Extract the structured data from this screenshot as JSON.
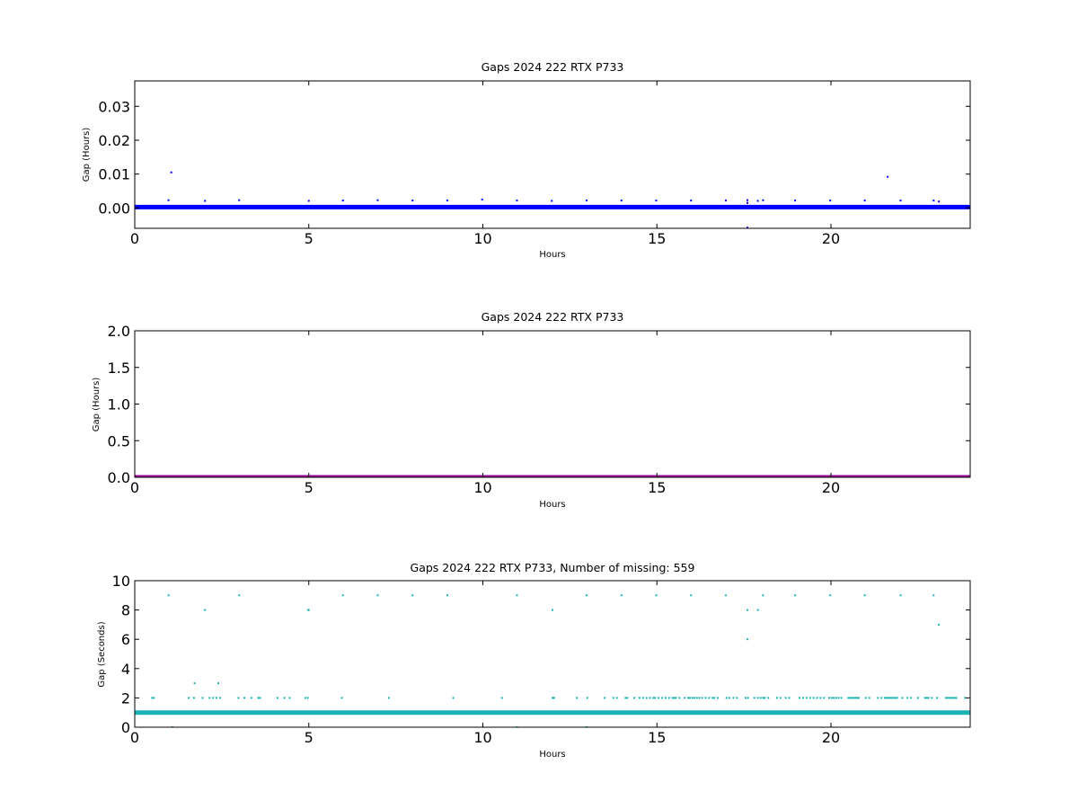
{
  "chart_data": [
    {
      "type": "scatter",
      "title": "Gaps 2024 222 RTX  P733",
      "xlabel": "Hours",
      "ylabel": "Gap (Hours)",
      "xlim": [
        0,
        24
      ],
      "ylim": [
        -0.006,
        0.0375
      ],
      "xticks": [
        "0",
        "5",
        "10",
        "15",
        "20"
      ],
      "xtick_values": [
        0,
        5,
        10,
        15,
        20
      ],
      "yticks": [
        "0.00",
        "0.01",
        "0.02",
        "0.03"
      ],
      "ytick_values": [
        0,
        0.01,
        0.02,
        0.03
      ],
      "color": "#0000ff",
      "baseline": {
        "value": 0.00028,
        "x_start": 0,
        "x_end": 24
      },
      "series": [
        {
          "x": [
            0.97,
            1.05,
            1.72,
            2.02,
            2.4,
            3.0,
            5.0,
            5.98,
            6.98,
            7.98,
            8.98,
            9.98,
            10.98,
            11.98,
            12.98,
            13.98,
            14.98,
            15.98,
            16.98,
            17.6,
            17.6,
            17.6,
            17.9,
            18.05,
            18.97,
            19.98,
            20.97,
            21.63,
            22.0,
            22.95,
            23.1
          ],
          "y": [
            0.0023,
            0.0105,
            0.0005,
            0.0021,
            0.0005,
            0.0023,
            0.0021,
            0.0022,
            0.0023,
            0.0022,
            0.0022,
            0.0025,
            0.0022,
            0.0021,
            0.0022,
            0.0022,
            0.0022,
            0.0022,
            0.0022,
            0.0023,
            0.0015,
            -0.0058,
            0.0021,
            0.0023,
            0.0022,
            0.0022,
            0.0022,
            0.0092,
            0.0022,
            0.0022,
            0.0019
          ]
        }
      ]
    },
    {
      "type": "scatter",
      "title": "Gaps 2024 222 RTX  P733",
      "xlabel": "Hours",
      "ylabel": "Gap (Hours)",
      "xlim": [
        0,
        24
      ],
      "ylim": [
        0,
        2.0
      ],
      "xticks": [
        "0",
        "5",
        "10",
        "15",
        "20"
      ],
      "xtick_values": [
        0,
        5,
        10,
        15,
        20
      ],
      "yticks": [
        "0.0",
        "0.5",
        "1.0",
        "1.5",
        "2.0"
      ],
      "ytick_values": [
        0,
        0.5,
        1.0,
        1.5,
        2.0
      ],
      "color": "#990099",
      "baseline": {
        "value": 0.0003,
        "x_start": 0,
        "x_end": 24
      },
      "series": [
        {
          "x": [
            1.08
          ],
          "y": [
            0.0105
          ]
        }
      ]
    },
    {
      "type": "scatter",
      "title": "Gaps 2024 222 RTX  P733, Number of missing: 559",
      "xlabel": "Hours",
      "ylabel": "Gap (Seconds)",
      "xlim": [
        0,
        24
      ],
      "ylim": [
        0,
        10
      ],
      "xticks": [
        "0",
        "5",
        "10",
        "15",
        "20"
      ],
      "xtick_values": [
        0,
        5,
        10,
        15,
        20
      ],
      "yticks": [
        "0",
        "2",
        "4",
        "6",
        "8",
        "10"
      ],
      "ytick_values": [
        0,
        2,
        4,
        6,
        8,
        10
      ],
      "color": "#1ab3b3",
      "baseline": {
        "value": 1,
        "x_start": 0,
        "x_end": 24
      },
      "series": [
        {
          "x": [
            0.97,
            2.02,
            3.0,
            5.0,
            5.98,
            6.98,
            7.98,
            8.98,
            10.98,
            12.98,
            13.98,
            14.98,
            15.98,
            16.98,
            18.05,
            18.97,
            19.98,
            20.97,
            22.0,
            22.95,
            12.0,
            4.98,
            17.6,
            17.9,
            23.1,
            17.6,
            1.72,
            2.4,
            1.08,
            10.98,
            12.98
          ],
          "y": [
            9,
            8,
            9,
            8,
            9,
            9,
            9,
            9,
            9,
            9,
            9,
            9,
            9,
            9,
            9,
            9,
            9,
            9,
            9,
            9,
            8,
            8,
            8,
            8,
            7,
            6,
            3,
            3,
            0,
            0,
            0
          ]
        },
        {
          "name": "",
          "x": [
            0.5,
            0.55,
            1.55,
            1.7,
            1.95,
            2.15,
            2.25,
            2.35,
            2.45,
            2.98,
            3.15,
            3.35,
            3.55,
            3.6,
            4.1,
            4.3,
            4.45,
            4.9,
            4.97,
            5.95,
            7.3,
            9.15,
            10.55,
            12.0,
            12.05,
            12.7,
            13.0,
            13.5,
            13.75,
            13.85,
            14.1,
            14.15,
            14.35,
            14.5,
            14.6,
            14.7,
            14.8,
            14.9,
            14.95,
            15.05,
            15.15,
            15.25,
            15.35,
            15.45,
            15.5,
            15.55,
            15.65,
            15.8,
            15.9,
            15.95,
            16.02,
            16.08,
            16.15,
            16.22,
            16.3,
            16.4,
            16.5,
            16.6,
            16.65,
            16.75,
            17.0,
            17.08,
            17.2,
            17.3,
            17.55,
            17.62,
            17.8,
            17.9,
            17.98,
            18.05,
            18.1,
            18.2,
            18.45,
            18.55,
            18.7,
            18.8,
            19.1,
            19.2,
            19.3,
            19.4,
            19.5,
            19.6,
            19.7,
            19.8,
            19.95,
            20.02,
            20.08,
            20.15,
            20.22,
            20.3,
            20.5,
            20.55,
            20.6,
            20.65,
            20.7,
            20.75,
            20.8,
            21.0,
            21.1,
            21.35,
            21.45,
            21.55,
            21.6,
            21.65,
            21.7,
            21.75,
            21.8,
            21.85,
            21.9,
            22.05,
            22.2,
            22.3,
            22.5,
            22.7,
            22.75,
            22.8,
            22.9,
            23.05,
            23.3,
            23.35,
            23.4,
            23.45,
            23.5,
            23.55,
            23.6,
            23.85
          ],
          "y": [
            2,
            2,
            2,
            2,
            2,
            2,
            2,
            2,
            2,
            2,
            2,
            2,
            2,
            2,
            2,
            2,
            2,
            2,
            2,
            2,
            2,
            2,
            2,
            2,
            2,
            2,
            2,
            2,
            2,
            2,
            2,
            2,
            2,
            2,
            2,
            2,
            2,
            2,
            2,
            2,
            2,
            2,
            2,
            2,
            2,
            2,
            2,
            2,
            2,
            2,
            2,
            2,
            2,
            2,
            2,
            2,
            2,
            2,
            2,
            2,
            2,
            2,
            2,
            2,
            2,
            2,
            2,
            2,
            2,
            2,
            2,
            2,
            2,
            2,
            2,
            2,
            2,
            2,
            2,
            2,
            2,
            2,
            2,
            2,
            2,
            2,
            2,
            2,
            2,
            2,
            2,
            2,
            2,
            2,
            2,
            2,
            2,
            2,
            2,
            2,
            2,
            2,
            2,
            2,
            2,
            2,
            2,
            2,
            2,
            2,
            2,
            2,
            2,
            2,
            2,
            2,
            2,
            2,
            2,
            2,
            2,
            2,
            2,
            2,
            2,
            2
          ]
        }
      ]
    }
  ]
}
